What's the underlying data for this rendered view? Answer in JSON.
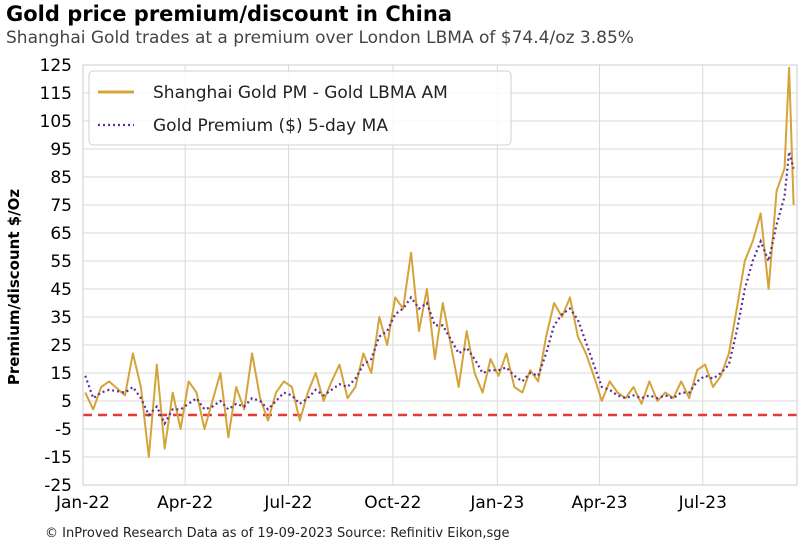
{
  "chart_data": {
    "type": "line",
    "title": "Gold price premium/discount in China",
    "subtitle": "Shanghai Gold trades at a premium over London LBMA of $74.4/oz 3.85%",
    "ylabel": "Premium/discount $/Oz",
    "xlabel": "",
    "ylim": [
      -25,
      125
    ],
    "yticks": [
      -25,
      -15,
      -5,
      5,
      15,
      25,
      35,
      45,
      55,
      65,
      75,
      85,
      95,
      105,
      115,
      125
    ],
    "xlim": [
      "2022-01-01",
      "2023-09-22"
    ],
    "xticks": [
      {
        "date": "2022-01-01",
        "label": "Jan-22"
      },
      {
        "date": "2022-04-01",
        "label": "Apr-22"
      },
      {
        "date": "2022-07-01",
        "label": "Jul-22"
      },
      {
        "date": "2022-10-01",
        "label": "Oct-22"
      },
      {
        "date": "2023-01-01",
        "label": "Jan-23"
      },
      {
        "date": "2023-04-01",
        "label": "Apr-23"
      },
      {
        "date": "2023-07-01",
        "label": "Jul-23"
      }
    ],
    "grid": true,
    "legend_position": "top-left",
    "reference_line": {
      "y": 0,
      "color": "#e53935",
      "style": "dashed"
    },
    "series": [
      {
        "name": "Shanghai Gold PM - Gold LBMA AM",
        "color": "#d4a43a",
        "style": "solid",
        "x": [
          "2022-01-03",
          "2022-01-10",
          "2022-01-17",
          "2022-01-24",
          "2022-02-07",
          "2022-02-14",
          "2022-02-21",
          "2022-02-28",
          "2022-03-07",
          "2022-03-14",
          "2022-03-21",
          "2022-03-28",
          "2022-04-04",
          "2022-04-11",
          "2022-04-18",
          "2022-04-25",
          "2022-05-02",
          "2022-05-09",
          "2022-05-16",
          "2022-05-23",
          "2022-05-30",
          "2022-06-06",
          "2022-06-13",
          "2022-06-20",
          "2022-06-27",
          "2022-07-04",
          "2022-07-11",
          "2022-07-18",
          "2022-07-25",
          "2022-08-01",
          "2022-08-08",
          "2022-08-15",
          "2022-08-22",
          "2022-08-29",
          "2022-09-05",
          "2022-09-12",
          "2022-09-19",
          "2022-09-26",
          "2022-10-03",
          "2022-10-10",
          "2022-10-17",
          "2022-10-24",
          "2022-10-31",
          "2022-11-07",
          "2022-11-14",
          "2022-11-21",
          "2022-11-28",
          "2022-12-05",
          "2022-12-12",
          "2022-12-19",
          "2022-12-26",
          "2023-01-02",
          "2023-01-09",
          "2023-01-16",
          "2023-01-23",
          "2023-01-30",
          "2023-02-06",
          "2023-02-13",
          "2023-02-20",
          "2023-02-27",
          "2023-03-06",
          "2023-03-13",
          "2023-03-20",
          "2023-03-27",
          "2023-04-03",
          "2023-04-10",
          "2023-04-17",
          "2023-04-24",
          "2023-05-01",
          "2023-05-08",
          "2023-05-15",
          "2023-05-22",
          "2023-05-29",
          "2023-06-05",
          "2023-06-12",
          "2023-06-19",
          "2023-06-26",
          "2023-07-03",
          "2023-07-10",
          "2023-07-17",
          "2023-07-24",
          "2023-07-31",
          "2023-08-07",
          "2023-08-14",
          "2023-08-21",
          "2023-08-28",
          "2023-09-04",
          "2023-09-11",
          "2023-09-15",
          "2023-09-19"
        ],
        "values": [
          8,
          2,
          10,
          12,
          7,
          22,
          10,
          -15,
          18,
          -12,
          8,
          -5,
          12,
          8,
          -5,
          5,
          15,
          -8,
          10,
          2,
          22,
          6,
          -2,
          8,
          12,
          10,
          -2,
          8,
          15,
          5,
          12,
          18,
          6,
          10,
          22,
          15,
          35,
          25,
          42,
          38,
          58,
          30,
          45,
          20,
          40,
          25,
          10,
          30,
          15,
          8,
          20,
          14,
          22,
          10,
          8,
          16,
          12,
          28,
          40,
          35,
          42,
          28,
          22,
          14,
          5,
          12,
          8,
          6,
          10,
          4,
          12,
          5,
          8,
          6,
          12,
          6,
          16,
          18,
          10,
          14,
          22,
          38,
          55,
          62,
          72,
          45,
          80,
          88,
          124,
          75
        ]
      },
      {
        "name": "Gold Premium ($) 5-day MA",
        "color": "#5b2d9c",
        "style": "dotted",
        "x": [
          "2022-01-03",
          "2022-01-10",
          "2022-01-17",
          "2022-01-24",
          "2022-02-07",
          "2022-02-14",
          "2022-02-21",
          "2022-02-28",
          "2022-03-07",
          "2022-03-14",
          "2022-03-21",
          "2022-03-28",
          "2022-04-04",
          "2022-04-11",
          "2022-04-18",
          "2022-04-25",
          "2022-05-02",
          "2022-05-09",
          "2022-05-16",
          "2022-05-23",
          "2022-05-30",
          "2022-06-06",
          "2022-06-13",
          "2022-06-20",
          "2022-06-27",
          "2022-07-04",
          "2022-07-11",
          "2022-07-18",
          "2022-07-25",
          "2022-08-01",
          "2022-08-08",
          "2022-08-15",
          "2022-08-22",
          "2022-08-29",
          "2022-09-05",
          "2022-09-12",
          "2022-09-19",
          "2022-09-26",
          "2022-10-03",
          "2022-10-10",
          "2022-10-17",
          "2022-10-24",
          "2022-10-31",
          "2022-11-07",
          "2022-11-14",
          "2022-11-21",
          "2022-11-28",
          "2022-12-05",
          "2022-12-12",
          "2022-12-19",
          "2022-12-26",
          "2023-01-02",
          "2023-01-09",
          "2023-01-16",
          "2023-01-23",
          "2023-01-30",
          "2023-02-06",
          "2023-02-13",
          "2023-02-20",
          "2023-02-27",
          "2023-03-06",
          "2023-03-13",
          "2023-03-20",
          "2023-03-27",
          "2023-04-03",
          "2023-04-10",
          "2023-04-17",
          "2023-04-24",
          "2023-05-01",
          "2023-05-08",
          "2023-05-15",
          "2023-05-22",
          "2023-05-29",
          "2023-06-05",
          "2023-06-12",
          "2023-06-19",
          "2023-06-26",
          "2023-07-03",
          "2023-07-10",
          "2023-07-17",
          "2023-07-24",
          "2023-07-31",
          "2023-08-07",
          "2023-08-14",
          "2023-08-21",
          "2023-08-28",
          "2023-09-04",
          "2023-09-11",
          "2023-09-15",
          "2023-09-19"
        ],
        "values": [
          14,
          6,
          8,
          9,
          8,
          10,
          6,
          0,
          3,
          -3,
          2,
          2,
          4,
          6,
          2,
          3,
          5,
          2,
          4,
          3,
          6,
          5,
          2,
          5,
          8,
          7,
          4,
          6,
          9,
          7,
          9,
          11,
          10,
          13,
          18,
          20,
          28,
          30,
          36,
          38,
          42,
          38,
          40,
          32,
          32,
          27,
          22,
          24,
          20,
          15,
          16,
          16,
          17,
          14,
          12,
          15,
          14,
          22,
          32,
          36,
          38,
          34,
          26,
          18,
          10,
          9,
          7,
          6,
          7,
          6,
          7,
          6,
          7,
          6,
          8,
          8,
          12,
          14,
          13,
          15,
          18,
          30,
          45,
          55,
          62,
          55,
          68,
          78,
          94,
          88
        ]
      }
    ]
  },
  "footer": "© InProved Research Data as of 19-09-2023 Source: Refinitiv Eikon,sge"
}
